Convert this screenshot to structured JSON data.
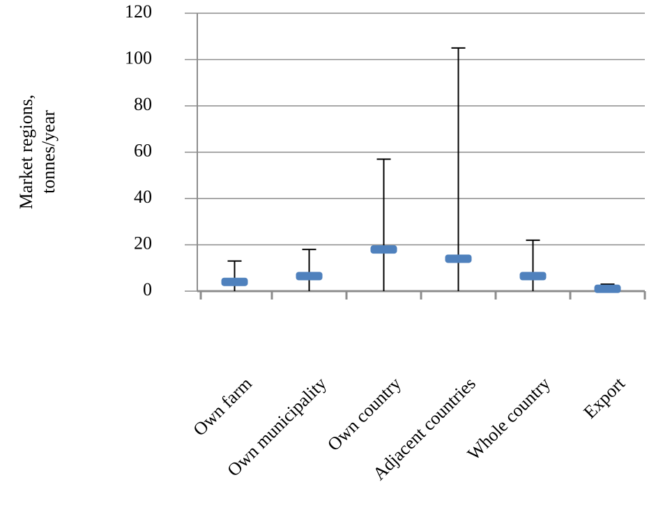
{
  "chart_data": {
    "type": "range",
    "y_label": [
      "Market regions,",
      "tonnes/year"
    ],
    "categories": [
      "Own farm",
      "Own municipality",
      "Own country",
      "Adjacent countries",
      "Whole country",
      "Export"
    ],
    "low": [
      0,
      0,
      0,
      0,
      0,
      0
    ],
    "high": [
      13,
      18,
      57,
      105,
      22,
      3
    ],
    "mid": [
      4,
      6.5,
      18,
      14,
      6.5,
      1
    ],
    "color": "#4f81bd",
    "line_color": "#000000",
    "ylim": [
      0,
      120
    ],
    "yticks": [
      0,
      20,
      40,
      60,
      80,
      100,
      120
    ],
    "grid": true
  }
}
